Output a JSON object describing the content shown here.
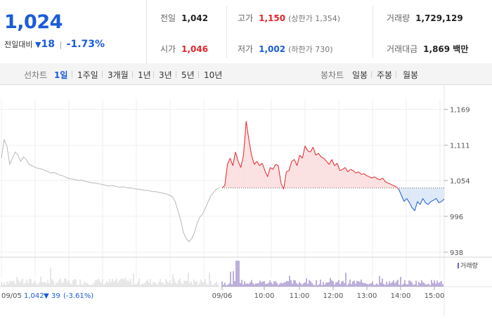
{
  "quote": {
    "price": "1,024",
    "change_label": "전일대비",
    "change_arrow": "▼",
    "change_value": "18",
    "change_pct": "-1.73%"
  },
  "info": {
    "prev_close_label": "전일",
    "prev_close": "1,042",
    "open_label": "시가",
    "open": "1,046",
    "high_label": "고가",
    "high": "1,150",
    "high_limit": "(상한가 1,354)",
    "low_label": "저가",
    "low": "1,002",
    "low_limit": "(하한가 730)",
    "volume_label": "거래량",
    "volume": "1,729,129",
    "amount_label": "거래대금",
    "amount": "1,869 백만"
  },
  "tabs": {
    "line_label": "선차트",
    "line_periods": [
      "1일",
      "1주일",
      "3개월",
      "1년",
      "3년",
      "5년",
      "10년"
    ],
    "selected": "1일",
    "candle_label": "봉차트",
    "candle_periods": [
      "일봉",
      "주봉",
      "월봉"
    ]
  },
  "chart_data": {
    "type": "line",
    "y_ticks": [
      "1,169",
      "1,111",
      "1,054",
      "996",
      "938"
    ],
    "y_tick_values": [
      1169,
      1111,
      1054,
      996,
      938
    ],
    "ylim": [
      930,
      1180
    ],
    "baseline": 1042,
    "x_tick_labels": [
      "09/06",
      "10:00",
      "11:00",
      "12:00",
      "13:00",
      "14:00",
      "15:00"
    ],
    "prev_day_date": "09/05",
    "prev_day_summary_price": "1,042",
    "prev_day_summary_arrow": "▼",
    "prev_day_summary_change": "39",
    "prev_day_summary_pct": "(-3.61%)",
    "volume_legend": "거래량",
    "prev_day_series": [
      1090,
      1120,
      1110,
      1080,
      1090,
      1100,
      1095,
      1085,
      1092,
      1088,
      1080,
      1078,
      1076,
      1074,
      1073,
      1072,
      1070,
      1068,
      1066,
      1067,
      1065,
      1063,
      1062,
      1060,
      1058,
      1057,
      1056,
      1055,
      1054,
      1055,
      1053,
      1052,
      1051,
      1050,
      1050,
      1049,
      1048,
      1047,
      1046,
      1045,
      1046,
      1045,
      1044,
      1043,
      1044,
      1043,
      1042,
      1042,
      1041,
      1040,
      1040,
      1039,
      1038,
      1038,
      1037,
      1036,
      1036,
      1035,
      1034,
      1033,
      1032,
      1030,
      1028,
      1020,
      1005,
      990,
      970,
      960,
      955,
      960,
      970,
      985,
      995,
      1000,
      1010,
      1020,
      1030,
      1035,
      1040,
      1042
    ],
    "today_series": [
      1042,
      1046,
      1080,
      1090,
      1078,
      1100,
      1085,
      1075,
      1095,
      1150,
      1120,
      1095,
      1080,
      1085,
      1078,
      1082,
      1070,
      1060,
      1075,
      1072,
      1080,
      1078,
      1050,
      1040,
      1068,
      1070,
      1085,
      1088,
      1078,
      1095,
      1090,
      1110,
      1102,
      1100,
      1108,
      1095,
      1098,
      1092,
      1090,
      1085,
      1080,
      1088,
      1078,
      1082,
      1070,
      1072,
      1075,
      1068,
      1072,
      1070,
      1066,
      1068,
      1064,
      1065,
      1062,
      1060,
      1058,
      1060,
      1057,
      1055,
      1058,
      1052,
      1050,
      1048,
      1046,
      1044,
      1040,
      1030,
      1020,
      1025,
      1018,
      1010,
      1005,
      1020,
      1015,
      1025,
      1018,
      1015,
      1020,
      1022,
      1025,
      1018,
      1020,
      1024
    ]
  },
  "colors": {
    "up": "#e0262b",
    "down": "#1a5bd8",
    "prev_day_line": "#b9b9b9",
    "up_fill": "#fbe1e1",
    "down_fill": "#dde9f7",
    "volume": "#7a5fb7"
  }
}
